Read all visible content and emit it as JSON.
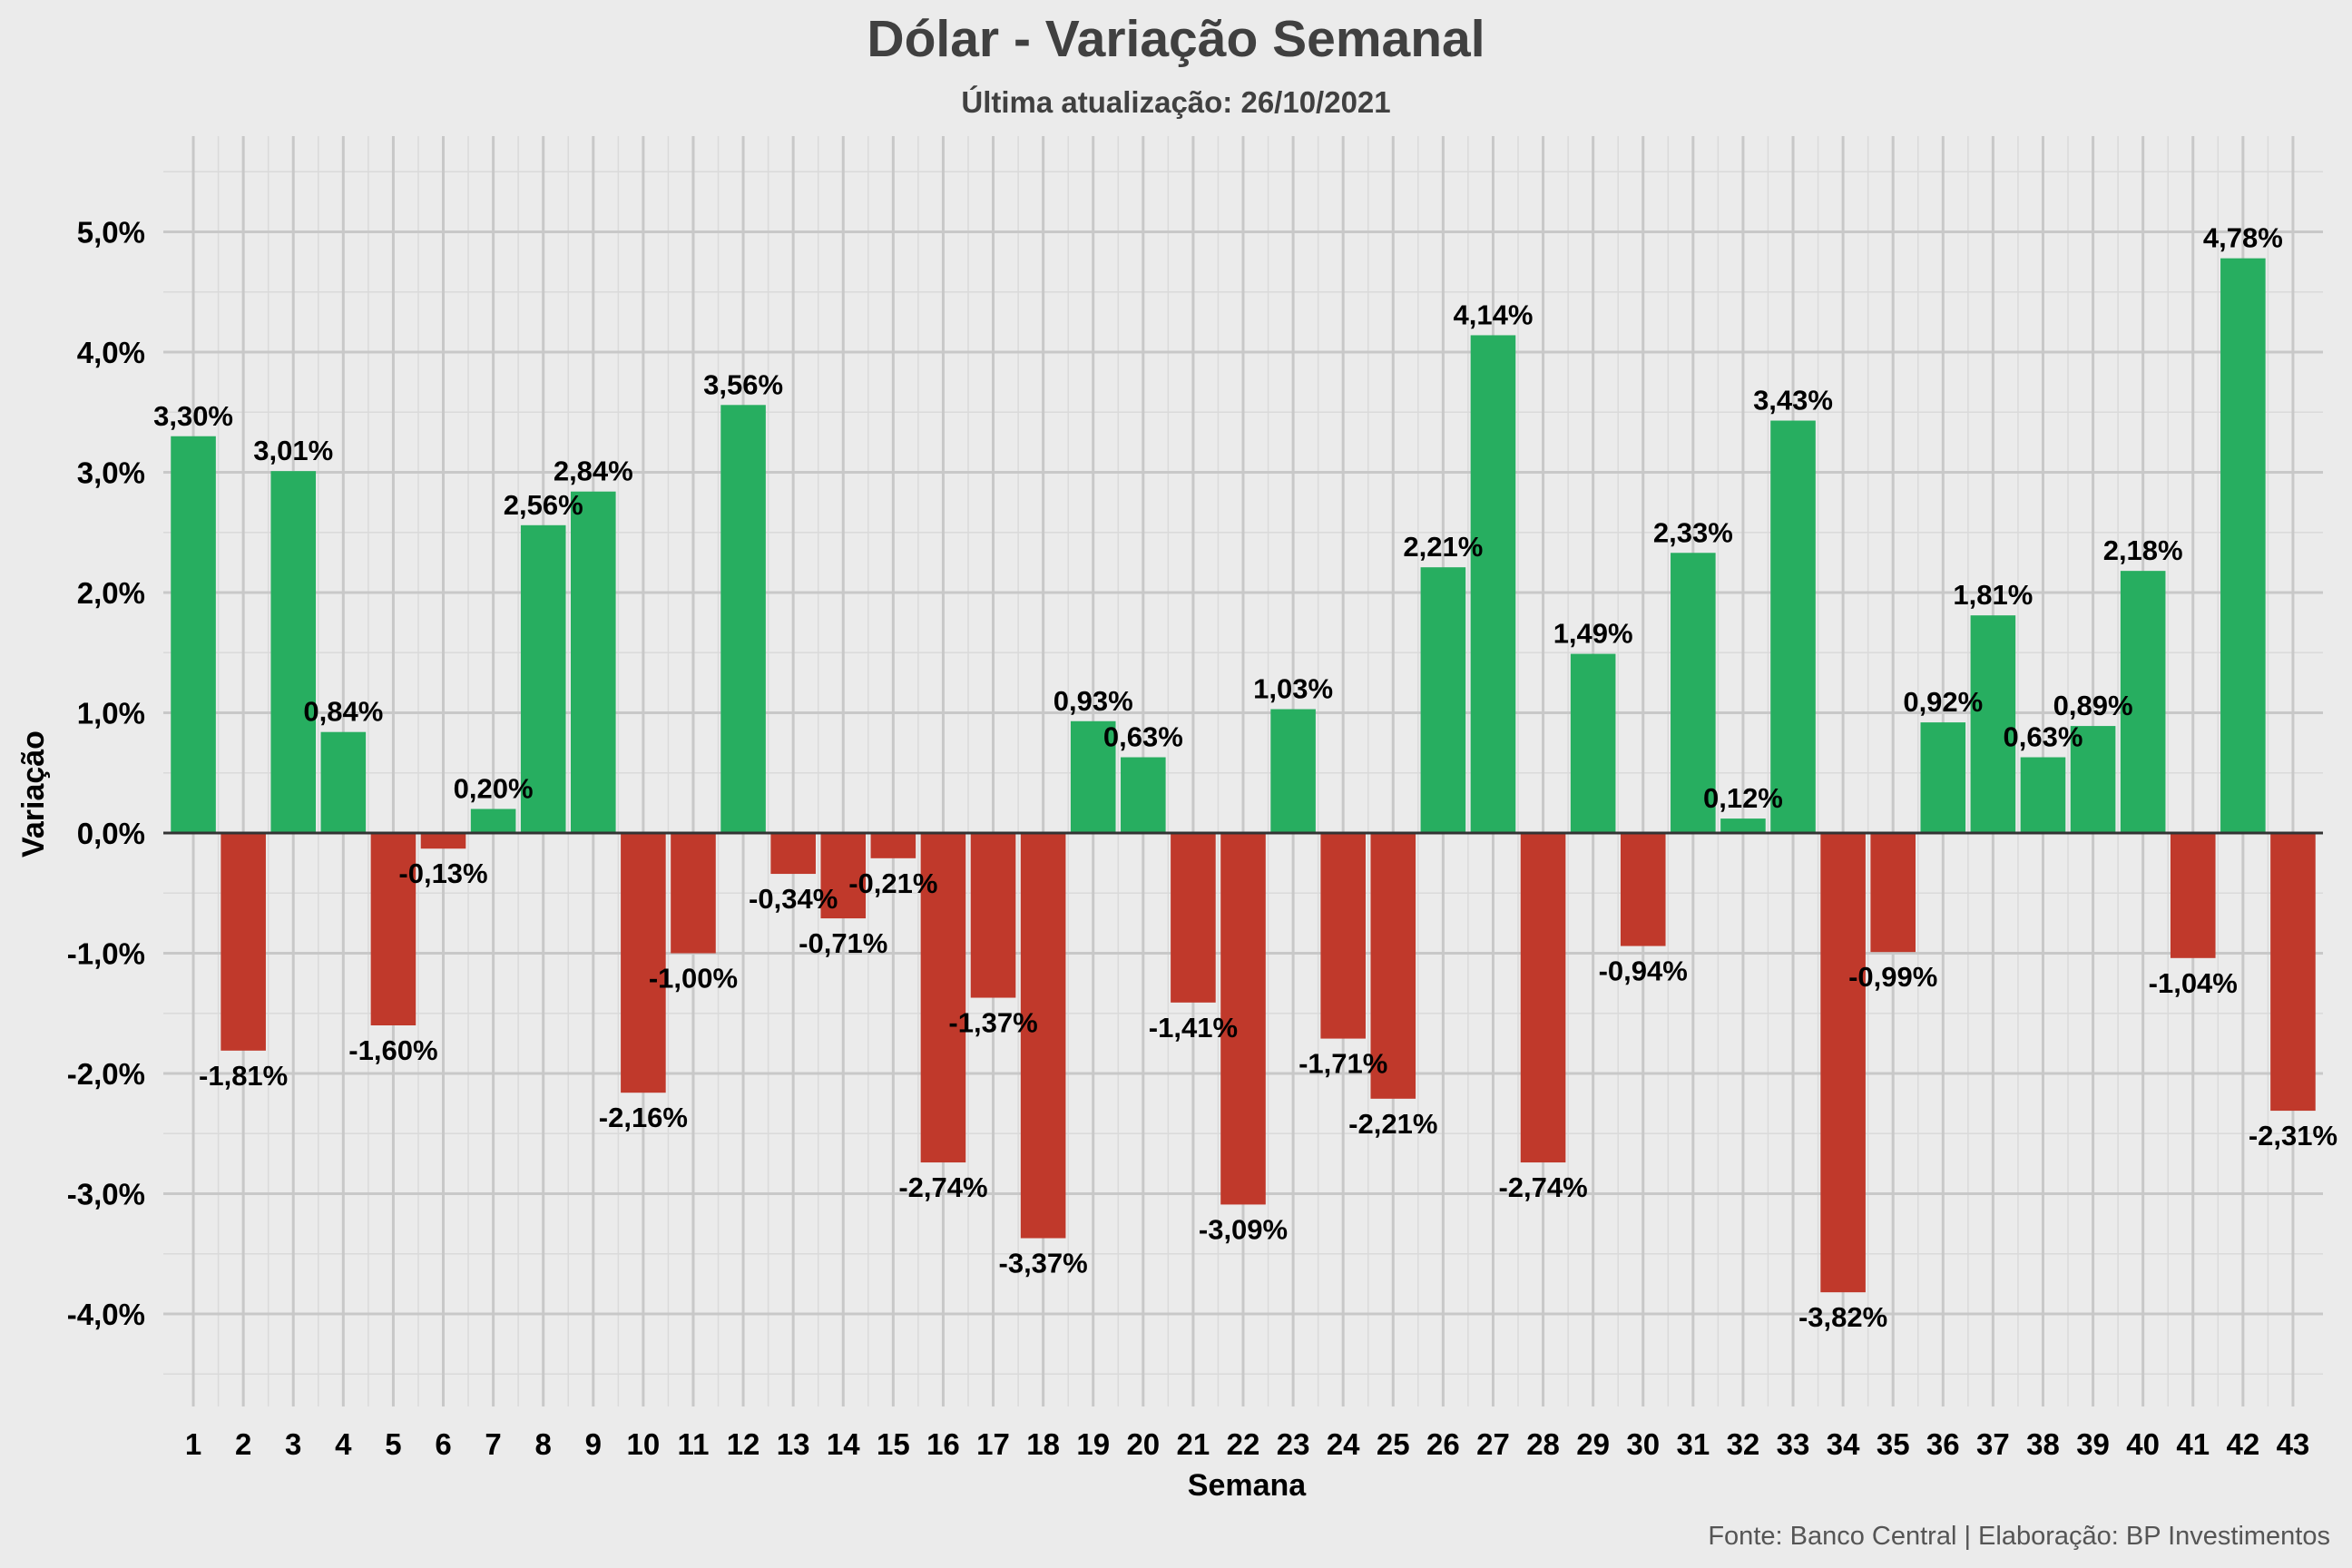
{
  "chart_data": {
    "type": "bar",
    "title": "Dólar - Variação Semanal",
    "subtitle": "Última atualização: 26/10/2021",
    "xlabel": "Semana",
    "ylabel": "Variação",
    "caption": "Fonte: Banco Central | Elaboração: BP Investimentos",
    "categories": [
      "1",
      "2",
      "3",
      "4",
      "5",
      "6",
      "7",
      "8",
      "9",
      "10",
      "11",
      "12",
      "13",
      "14",
      "15",
      "16",
      "17",
      "18",
      "19",
      "20",
      "21",
      "22",
      "23",
      "24",
      "25",
      "26",
      "27",
      "28",
      "29",
      "30",
      "31",
      "32",
      "33",
      "34",
      "35",
      "36",
      "37",
      "38",
      "39",
      "40",
      "41",
      "42",
      "43"
    ],
    "values": [
      3.3,
      -1.81,
      3.01,
      0.84,
      -1.6,
      -0.13,
      0.2,
      2.56,
      2.84,
      -2.16,
      -1.0,
      3.56,
      -0.34,
      -0.71,
      -0.21,
      -2.74,
      -1.37,
      -3.37,
      0.93,
      0.63,
      -1.41,
      -3.09,
      1.03,
      -1.71,
      -2.21,
      2.21,
      4.14,
      -2.74,
      1.49,
      -0.94,
      2.33,
      0.12,
      3.43,
      -3.82,
      -0.99,
      0.92,
      1.81,
      0.63,
      0.89,
      2.18,
      -1.04,
      4.78,
      -2.31
    ],
    "labels": [
      "3,30%",
      "-1,81%",
      "3,01%",
      "0,84%",
      "-1,60%",
      "-0,13%",
      "0,20%",
      "2,56%",
      "2,84%",
      "-2,16%",
      "-1,00%",
      "3,56%",
      "-0,34%",
      "-0,71%",
      "-0,21%",
      "-2,74%",
      "-1,37%",
      "-3,37%",
      "0,93%",
      "0,63%",
      "-1,41%",
      "-3,09%",
      "1,03%",
      "-1,71%",
      "-2,21%",
      "2,21%",
      "4,14%",
      "-2,74%",
      "1,49%",
      "-0,94%",
      "2,33%",
      "0,12%",
      "3,43%",
      "-3,82%",
      "-0,99%",
      "0,92%",
      "1,81%",
      "0,63%",
      "0,89%",
      "2,18%",
      "-1,04%",
      "4,78%",
      "-2,31%"
    ],
    "yticks": [
      -4,
      -3,
      -2,
      -1,
      0,
      1,
      2,
      3,
      4,
      5
    ],
    "ytick_labels": [
      "-4,0%",
      "-3,0%",
      "-2,0%",
      "-1,0%",
      "0,0%",
      "1,0%",
      "2,0%",
      "3,0%",
      "4,0%",
      "5,0%"
    ],
    "ylim": [
      -4.75,
      5.8
    ],
    "colors": {
      "positive": "#27ae60",
      "negative": "#c0392b",
      "background": "#ebebeb",
      "grid_major": "#c8c8c8",
      "grid_minor": "#dadada",
      "zero_line": "#333333"
    },
    "grid": true,
    "legend": "none"
  }
}
